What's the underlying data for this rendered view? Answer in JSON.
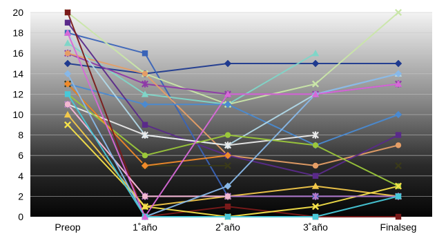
{
  "chart_data": {
    "type": "line",
    "title": "",
    "xlabel": "",
    "ylabel": "",
    "categories": [
      "Preop",
      "1˚año",
      "2˚año",
      "3˚año",
      "Finalseg"
    ],
    "y_ticks": [
      "0",
      "2",
      "4",
      "6",
      "8",
      "10",
      "12",
      "14",
      "16",
      "18",
      "20"
    ],
    "ylim": [
      0,
      20
    ],
    "grid": true,
    "legend": "none",
    "background": "dark-gradient",
    "series": [
      {
        "color": "#1f3a8f",
        "values": [
          15,
          14,
          15,
          15,
          15
        ]
      },
      {
        "color": "#3a64b8",
        "values": [
          18,
          16,
          2,
          2,
          2
        ]
      },
      {
        "color": "#7fd6c8",
        "values": [
          17,
          12,
          11,
          16,
          null
        ]
      },
      {
        "color": "#c9e6a8",
        "values": [
          20,
          14,
          11,
          13,
          20
        ]
      },
      {
        "color": "#8e3aa8",
        "values": [
          16,
          13,
          12,
          12,
          13
        ]
      },
      {
        "color": "#e59e66",
        "values": [
          16,
          14,
          6,
          5,
          7
        ]
      },
      {
        "color": "#4a8ad1",
        "values": [
          13,
          11,
          11,
          7,
          10
        ]
      },
      {
        "color": "#5a2a8a",
        "values": [
          19,
          9,
          6,
          4,
          8
        ]
      },
      {
        "color": "#b0d8e8",
        "values": [
          18,
          8,
          7,
          12,
          14
        ]
      },
      {
        "color": "#3a3a1a",
        "values": [
          13,
          5,
          5,
          null,
          5
        ]
      },
      {
        "color": "#eaeaea",
        "values": [
          11,
          8,
          7,
          8,
          null
        ]
      },
      {
        "color": "#9bc83a",
        "values": [
          12,
          6,
          8,
          7,
          3
        ]
      },
      {
        "color": "#f08a2a",
        "values": [
          13,
          5,
          6,
          null,
          null
        ]
      },
      {
        "color": "#7a1a1a",
        "values": [
          20,
          0,
          1,
          0,
          0
        ]
      },
      {
        "color": "#f2c84a",
        "values": [
          10,
          1,
          2,
          3,
          2
        ]
      },
      {
        "color": "#f5e24a",
        "values": [
          9,
          1,
          0,
          1,
          3
        ]
      },
      {
        "color": "#b678c8",
        "values": [
          11,
          2,
          2,
          2,
          2
        ]
      },
      {
        "color": "#f2b8d0",
        "values": [
          11,
          2,
          2,
          null,
          null
        ]
      },
      {
        "color": "#88b8e8",
        "values": [
          14,
          0,
          3,
          12,
          14
        ]
      },
      {
        "color": "#48c8d8",
        "values": [
          12,
          0,
          0,
          0,
          2
        ]
      },
      {
        "color": "#d868d8",
        "values": [
          18,
          0,
          12,
          12,
          13
        ]
      }
    ]
  }
}
